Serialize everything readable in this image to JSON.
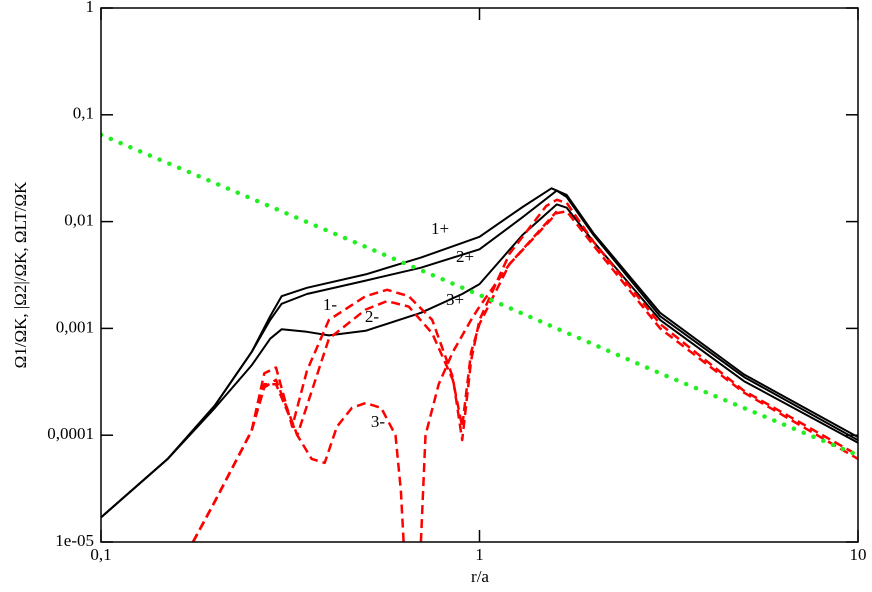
{
  "chart_data": {
    "type": "line",
    "xlabel": "r/a",
    "ylabel": "Ω1/ΩK, |Ω2|/ΩK, ΩLT/ΩK",
    "xscale": "log",
    "yscale": "log",
    "xlim": [
      0.1,
      10
    ],
    "ylim": [
      1e-05,
      1
    ],
    "xticks": [
      {
        "value": 0.1,
        "label": "0,1"
      },
      1,
      10
    ],
    "yticks": [
      {
        "value": 1e-05,
        "label": "1e-05"
      },
      {
        "value": 0.0001,
        "label": "0,0001"
      },
      {
        "value": 0.001,
        "label": "0,001"
      },
      {
        "value": 0.01,
        "label": "0,01"
      },
      {
        "value": 0.1,
        "label": "0,1"
      },
      1
    ],
    "annotations": [
      "1+",
      "2+",
      "3+",
      "1-",
      "2-",
      "3-"
    ],
    "series": [
      {
        "color": "#000000",
        "style": "solid",
        "x": [
          0.1,
          0.15,
          0.2,
          0.25,
          0.28,
          0.3,
          0.35,
          0.5,
          0.7,
          1.0,
          1.3,
          1.55,
          1.7,
          2,
          3,
          5,
          10
        ],
        "values": [
          1.7e-05,
          6e-05,
          0.00019,
          0.0006,
          0.0013,
          0.002,
          0.0024,
          0.0032,
          0.0046,
          0.0072,
          0.0137,
          0.0205,
          0.0178,
          0.0078,
          0.0014,
          0.00037,
          9.6e-05
        ]
      },
      {
        "color": "#000000",
        "style": "solid",
        "x": [
          0.1,
          0.15,
          0.2,
          0.25,
          0.28,
          0.3,
          0.35,
          0.5,
          0.7,
          1.0,
          1.3,
          1.6,
          1.7,
          2,
          3,
          5,
          10
        ],
        "values": [
          1.7e-05,
          6e-05,
          0.00019,
          0.0006,
          0.0012,
          0.0017,
          0.0021,
          0.0028,
          0.0037,
          0.0055,
          0.011,
          0.0195,
          0.017,
          0.0075,
          0.0013,
          0.00035,
          9e-05
        ]
      },
      {
        "color": "#000000",
        "style": "solid",
        "x": [
          0.1,
          0.15,
          0.2,
          0.25,
          0.28,
          0.3,
          0.35,
          0.4,
          0.5,
          0.7,
          0.9,
          1.0,
          1.3,
          1.6,
          1.7,
          2,
          3,
          5,
          10
        ],
        "values": [
          1.7e-05,
          6e-05,
          0.00018,
          0.00045,
          0.0008,
          0.00098,
          0.00093,
          0.00086,
          0.00095,
          0.0014,
          0.0021,
          0.0026,
          0.0075,
          0.0145,
          0.0135,
          0.0065,
          0.0012,
          0.00032,
          8.5e-05
        ]
      },
      {
        "color": "#ff0000",
        "style": "dashed",
        "x": [
          0.175,
          0.2,
          0.25,
          0.27,
          0.29,
          0.32,
          0.35,
          0.4,
          0.5,
          0.57,
          0.65,
          0.75,
          0.85,
          0.9,
          0.95,
          1.0,
          1.2,
          1.5,
          1.6,
          1.7,
          2,
          3,
          5,
          10
        ],
        "values": [
          1e-05,
          2.4e-05,
          0.00011,
          0.00038,
          0.00043,
          0.00012,
          0.0004,
          0.0012,
          0.002,
          0.0023,
          0.002,
          0.0012,
          0.00035,
          9e-05,
          0.0005,
          0.0012,
          0.005,
          0.014,
          0.016,
          0.015,
          0.0065,
          0.0011,
          0.00026,
          6.5e-05
        ]
      },
      {
        "color": "#ff0000",
        "style": "dashed",
        "x": [
          0.175,
          0.2,
          0.25,
          0.27,
          0.29,
          0.33,
          0.4,
          0.5,
          0.57,
          0.65,
          0.75,
          0.85,
          0.9,
          0.95,
          1.0,
          1.2,
          1.6,
          1.7,
          2,
          3,
          5,
          10
        ],
        "values": [
          1e-05,
          2.4e-05,
          0.00011,
          0.00028,
          0.00033,
          0.0001,
          0.0008,
          0.0015,
          0.0018,
          0.0016,
          0.0009,
          0.00033,
          0.00012,
          0.0006,
          0.0011,
          0.004,
          0.012,
          0.0125,
          0.006,
          0.001,
          0.00025,
          6e-05
        ]
      },
      {
        "color": "#ff0000",
        "style": "dashed",
        "x": [
          0.175,
          0.2,
          0.25,
          0.27,
          0.29,
          0.33,
          0.36,
          0.39,
          0.42,
          0.46,
          0.5,
          0.55,
          0.6,
          0.62,
          0.63,
          0.66,
          0.7,
          0.72,
          0.78,
          0.85,
          0.95,
          1.0,
          1.2,
          1.6
        ],
        "values": [
          1e-05,
          2.4e-05,
          0.00011,
          0.0003,
          0.0003,
          0.0001,
          6e-05,
          5.5e-05,
          0.00012,
          0.00018,
          0.0002,
          0.00018,
          0.0001,
          3e-05,
          1e-05,
          null,
          1e-05,
          0.0001,
          0.0003,
          0.0006,
          0.0012,
          0.0016,
          0.004,
          0.0125
        ]
      },
      {
        "color": "#22ee22",
        "style": "dotted",
        "x": [
          0.1,
          0.3,
          1,
          3,
          10
        ],
        "values": [
          0.065,
          0.0125,
          0.00206,
          0.00038,
          6.5e-05
        ]
      }
    ]
  }
}
